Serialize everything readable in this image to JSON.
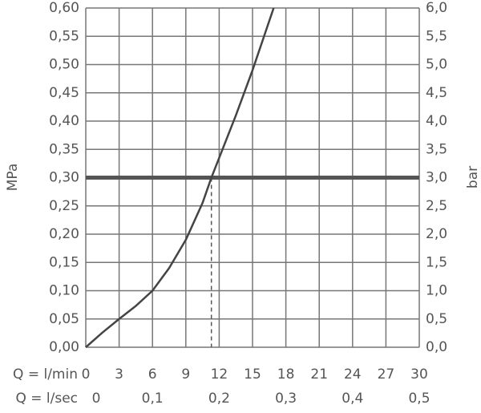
{
  "chart_data": {
    "type": "line",
    "y_label": "MPa",
    "y2_label": "bar",
    "x_label": "Q = l/min",
    "x2_label": "Q = l/sec",
    "x": [
      0,
      1.5,
      3,
      4.5,
      6,
      7.5,
      9,
      10.5,
      11.3,
      12,
      13.5,
      15,
      16.9
    ],
    "series": [
      {
        "name": "MPa",
        "color": "#444444",
        "values": [
          0,
          0.026,
          0.05,
          0.073,
          0.1,
          0.14,
          0.19,
          0.255,
          0.3,
          0.335,
          0.41,
          0.49,
          0.6
        ]
      }
    ],
    "reference_y": 0.3,
    "reference_x": 11.3,
    "reference_color": "#555555",
    "xlim": [
      0,
      30
    ],
    "xticks": [
      0,
      3,
      6,
      9,
      12,
      15,
      18,
      21,
      24,
      27,
      30
    ],
    "x2lim": [
      0,
      0.5
    ],
    "x2ticks": [
      0,
      {
        "value": 0.1,
        "label": "0,1"
      },
      {
        "value": 0.2,
        "label": "0,2"
      },
      {
        "value": 0.3,
        "label": "0,3"
      },
      {
        "value": 0.4,
        "label": "0,4"
      },
      {
        "value": 0.5,
        "label": "0,5"
      }
    ],
    "ylim": [
      0,
      0.6
    ],
    "yticks": [
      {
        "value": 0,
        "label": "0,00"
      },
      {
        "value": 0.05,
        "label": "0,05"
      },
      {
        "value": 0.1,
        "label": "0,10"
      },
      {
        "value": 0.15,
        "label": "0,15"
      },
      {
        "value": 0.2,
        "label": "0,20"
      },
      {
        "value": 0.25,
        "label": "0,25"
      },
      {
        "value": 0.3,
        "label": "0,30"
      },
      {
        "value": 0.35,
        "label": "0,35"
      },
      {
        "value": 0.4,
        "label": "0,40"
      },
      {
        "value": 0.45,
        "label": "0,45"
      },
      {
        "value": 0.5,
        "label": "0,50"
      },
      {
        "value": 0.55,
        "label": "0,55"
      },
      {
        "value": 0.6,
        "label": "0,60"
      }
    ],
    "y2lim": [
      0,
      6
    ],
    "y2ticks": [
      {
        "value": 0,
        "label": "0,0"
      },
      {
        "value": 0.5,
        "label": "0,5"
      },
      {
        "value": 1,
        "label": "1,0"
      },
      {
        "value": 1.5,
        "label": "1,5"
      },
      {
        "value": 2,
        "label": "2,0"
      },
      {
        "value": 2.5,
        "label": "2,5"
      },
      {
        "value": 3,
        "label": "3,0"
      },
      {
        "value": 3.5,
        "label": "3,5"
      },
      {
        "value": 4,
        "label": "4,0"
      },
      {
        "value": 4.5,
        "label": "4,5"
      },
      {
        "value": 5,
        "label": "5,0"
      },
      {
        "value": 5.5,
        "label": "5,5"
      },
      {
        "value": 6,
        "label": "6,0"
      }
    ],
    "grid": true
  }
}
